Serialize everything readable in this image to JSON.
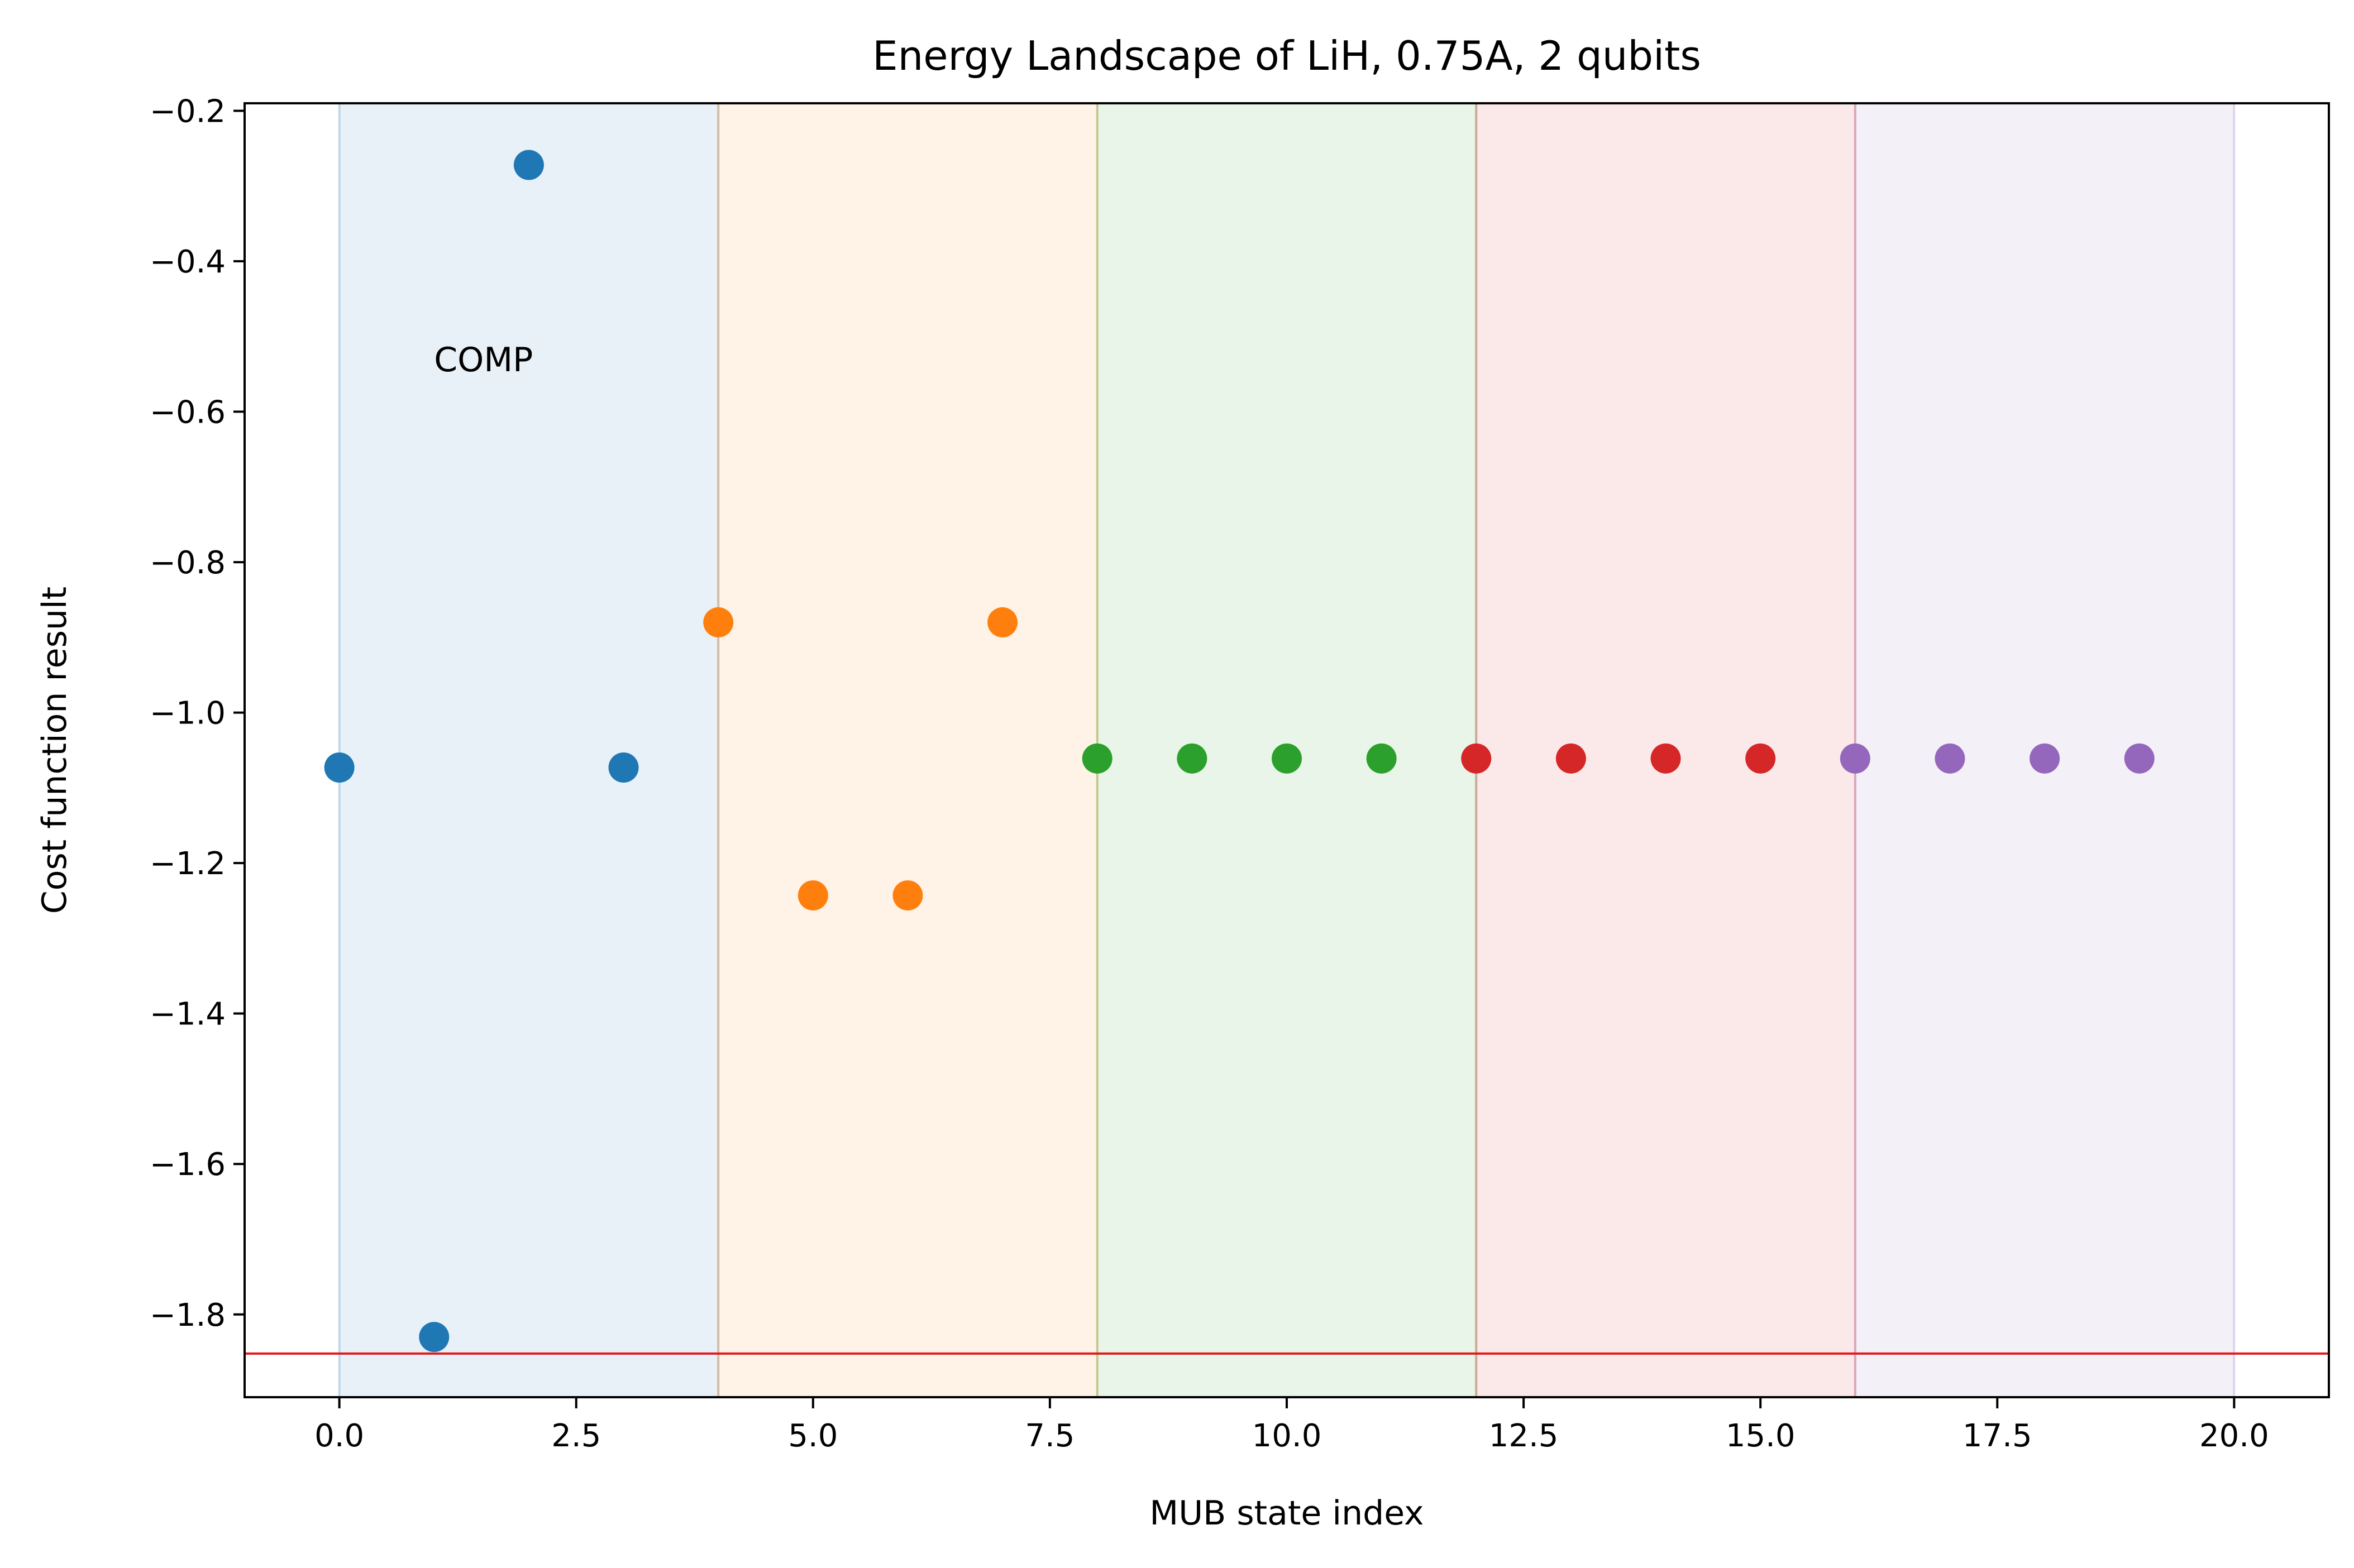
{
  "chart_data": {
    "type": "scatter",
    "title": "Energy Landscape of LiH, 0.75A, 2 qubits",
    "xlabel": "MUB state index",
    "ylabel": "Cost function result",
    "xlim": [
      -1.0,
      21.0
    ],
    "ylim": [
      -1.91,
      -0.19
    ],
    "x_ticks": [
      "0.0",
      "2.5",
      "5.0",
      "7.5",
      "10.0",
      "12.5",
      "15.0",
      "17.5",
      "20.0"
    ],
    "y_ticks": [
      "−0.2",
      "−0.4",
      "−0.6",
      "−0.8",
      "−1.0",
      "−1.2",
      "−1.4",
      "−1.6",
      "−1.8"
    ],
    "grid": false,
    "annotation": "COMP",
    "series": [
      {
        "color": "#1f77b4",
        "x": [
          0,
          1,
          2,
          3
        ],
        "y": [
          -1.073,
          -1.83,
          -0.272,
          -1.073
        ]
      },
      {
        "color": "#ff7f0e",
        "x": [
          4,
          5,
          6,
          7
        ],
        "y": [
          -0.88,
          -1.243,
          -1.243,
          -0.88
        ]
      },
      {
        "color": "#2ca02c",
        "x": [
          8,
          9,
          10,
          11
        ],
        "y": [
          -1.061,
          -1.061,
          -1.061,
          -1.061
        ]
      },
      {
        "color": "#d62728",
        "x": [
          12,
          13,
          14,
          15
        ],
        "y": [
          -1.061,
          -1.061,
          -1.061,
          -1.061
        ]
      },
      {
        "color": "#9467bd",
        "x": [
          16,
          17,
          18,
          19
        ],
        "y": [
          -1.061,
          -1.061,
          -1.061,
          -1.061
        ]
      }
    ],
    "shaded_spans": [
      {
        "x0": 0,
        "x1": 4,
        "color": "#1f77b4"
      },
      {
        "x0": 4,
        "x1": 8,
        "color": "#ff7f0e"
      },
      {
        "x0": 8,
        "x1": 12,
        "color": "#2ca02c"
      },
      {
        "x0": 12,
        "x1": 16,
        "color": "#d62728"
      },
      {
        "x0": 16,
        "x1": 20,
        "color": "#9467bd"
      }
    ],
    "reference_line": {
      "y": -1.852,
      "color": "#e31a1c"
    }
  }
}
